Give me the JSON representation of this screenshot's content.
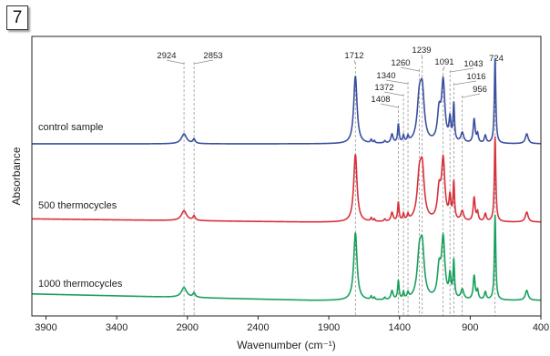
{
  "panel_label": "7",
  "chart_data": {
    "type": "line",
    "xlabel": "Wavenumber (cm⁻¹)",
    "ylabel": "Absorbance",
    "xlim": [
      4000,
      400
    ],
    "x_reversed": true,
    "grid": false,
    "x_ticks": [
      3900,
      3400,
      2900,
      2400,
      1900,
      1400,
      900,
      400
    ],
    "reference_peaks": [
      2924,
      2853,
      1712,
      1408,
      1372,
      1340,
      1260,
      1239,
      1091,
      1043,
      1016,
      956,
      724
    ],
    "series": [
      {
        "name": "control sample",
        "color": "#3a4fa0",
        "offset": 2.0,
        "base": 0.0,
        "scale": 1.0
      },
      {
        "name": "500 thermocycles",
        "color": "#d8303a",
        "offset": 1.0,
        "base": 0.03,
        "scale": 1.0
      },
      {
        "name": "1000 thermocycles",
        "color": "#17a05c",
        "offset": 0.0,
        "base": 0.06,
        "scale": 1.0
      }
    ],
    "bands": [
      {
        "x": 2924,
        "height": 0.09,
        "width": 22
      },
      {
        "x": 2853,
        "height": 0.04,
        "width": 10
      },
      {
        "x": 1712,
        "height": 0.62,
        "width": 14
      },
      {
        "x": 1600,
        "height": 0.03,
        "width": 6
      },
      {
        "x": 1578,
        "height": 0.02,
        "width": 5
      },
      {
        "x": 1504,
        "height": 0.02,
        "width": 6
      },
      {
        "x": 1453,
        "height": 0.08,
        "width": 9
      },
      {
        "x": 1408,
        "height": 0.17,
        "width": 6
      },
      {
        "x": 1372,
        "height": 0.06,
        "width": 6
      },
      {
        "x": 1340,
        "height": 0.05,
        "width": 7
      },
      {
        "x": 1260,
        "height": 0.36,
        "width": 18
      },
      {
        "x": 1239,
        "height": 0.42,
        "width": 17
      },
      {
        "x": 1120,
        "height": 0.26,
        "width": 14
      },
      {
        "x": 1091,
        "height": 0.54,
        "width": 14
      },
      {
        "x": 1043,
        "height": 0.2,
        "width": 8
      },
      {
        "x": 1016,
        "height": 0.34,
        "width": 6
      },
      {
        "x": 956,
        "height": 0.09,
        "width": 12
      },
      {
        "x": 872,
        "height": 0.22,
        "width": 8
      },
      {
        "x": 848,
        "height": 0.08,
        "width": 7
      },
      {
        "x": 793,
        "height": 0.07,
        "width": 8
      },
      {
        "x": 724,
        "height": 0.78,
        "width": 6
      },
      {
        "x": 500,
        "height": 0.09,
        "width": 12
      }
    ]
  }
}
